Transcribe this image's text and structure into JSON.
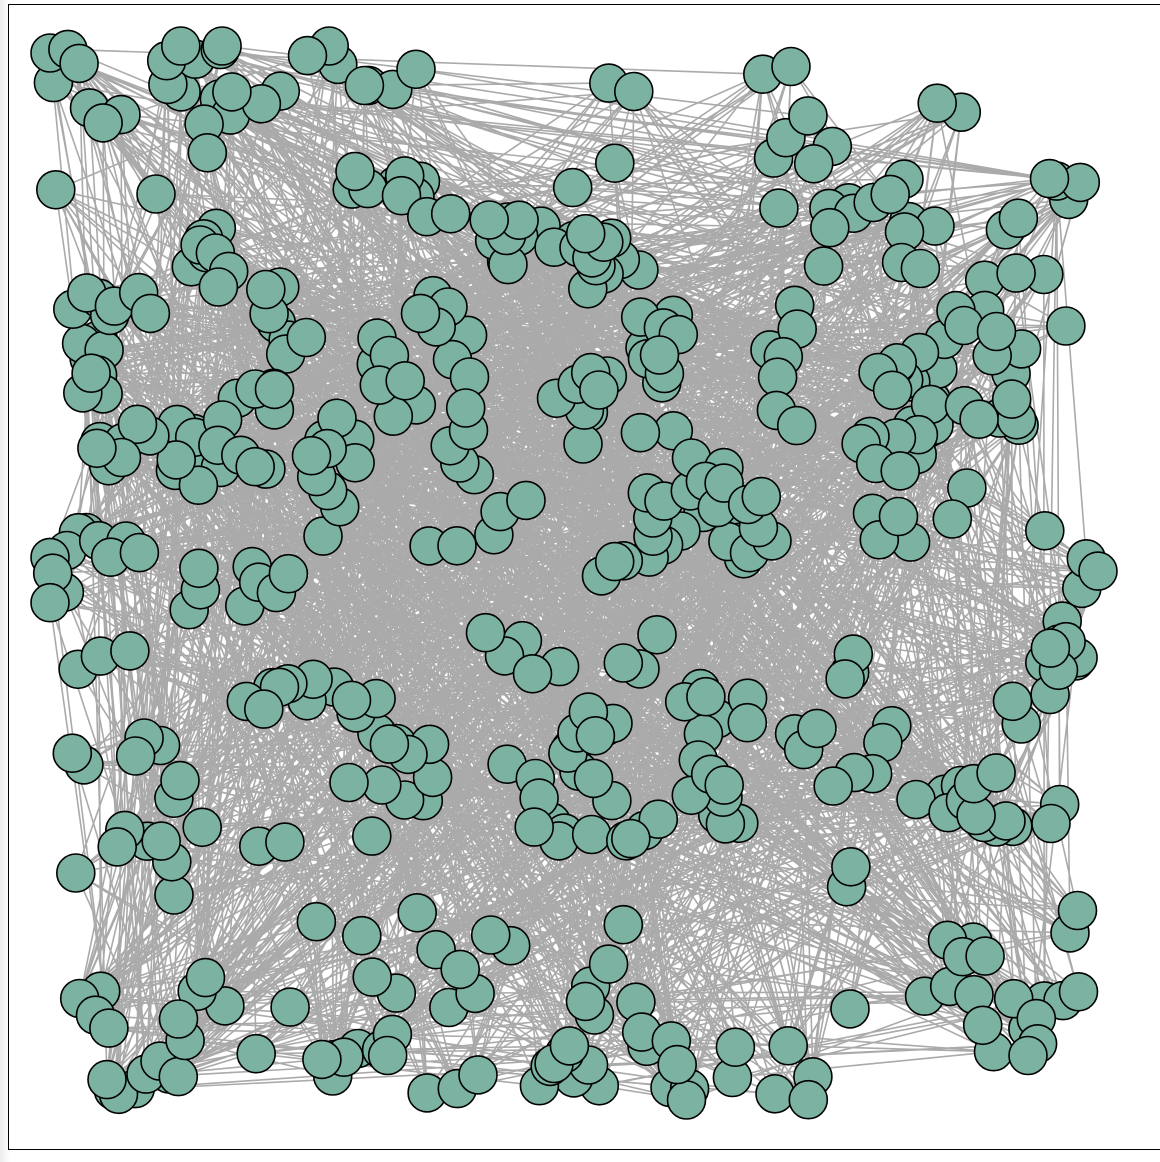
{
  "diagram": {
    "type": "network-graph",
    "node_count": 520,
    "edge_count": 2600,
    "colors": {
      "node_fill": "#7bb2a1",
      "node_stroke": "#000000",
      "edge": "#aaaaaa",
      "background": "#ffffff",
      "frame": "#000000"
    }
  }
}
